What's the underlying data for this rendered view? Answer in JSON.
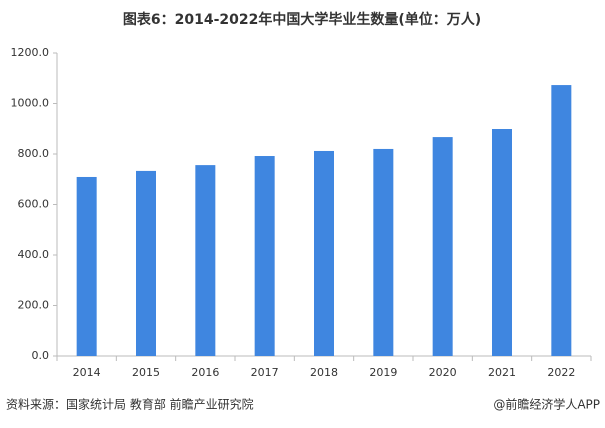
{
  "chart_data": {
    "type": "bar",
    "title": "图表6：2014-2022年中国大学毕业生数量(单位：万人)",
    "source": "资料来源：国家统计局 教育部 前瞻产业研究院",
    "credit": "@前瞻经济学人APP",
    "categories": [
      "2014",
      "2015",
      "2016",
      "2017",
      "2018",
      "2019",
      "2020",
      "2021",
      "2022"
    ],
    "values": [
      709,
      733,
      756,
      792,
      812,
      820,
      867,
      899,
      1073
    ],
    "color": "#3f86e0",
    "ylim": [
      0,
      1200
    ],
    "yticks": [
      {
        "value": 0,
        "label": "0.0"
      },
      {
        "value": 200,
        "label": "200.0"
      },
      {
        "value": 400,
        "label": "400.0"
      },
      {
        "value": 600,
        "label": "600.0"
      },
      {
        "value": 800,
        "label": "800.0"
      },
      {
        "value": 1000,
        "label": "1000.0"
      },
      {
        "value": 1200,
        "label": "1200.0"
      }
    ],
    "grid": false
  }
}
